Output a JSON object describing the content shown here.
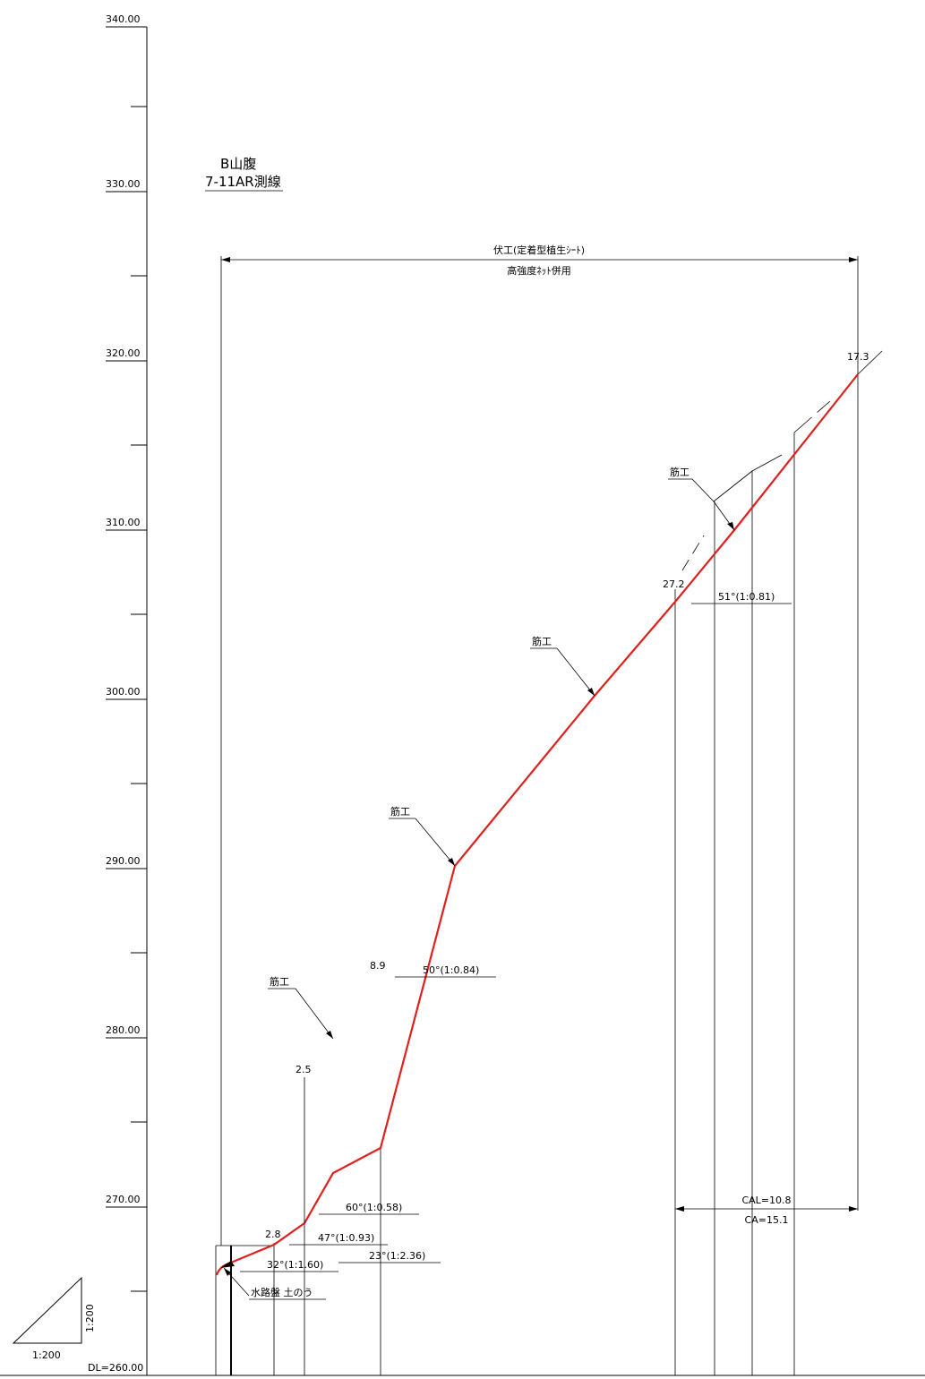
{
  "title": {
    "line1": "B山腹",
    "line2": "7-11AR測線"
  },
  "elevation_axis": {
    "datum_label": "DL=260.00",
    "major_ticks": [
      "340.00",
      "330.00",
      "320.00",
      "310.00",
      "300.00",
      "290.00",
      "280.00",
      "270.00"
    ]
  },
  "works": {
    "cover_top": "伏工(定着型植生ｼｰﾄ)",
    "cover_bottom": "高強度ﾈｯﾄ併用",
    "terrace_labels": [
      "筋工",
      "筋工",
      "筋工",
      "筋工"
    ],
    "drain_label": "水路盤 土のう"
  },
  "slopes": [
    {
      "label": "32°(1:1.60)"
    },
    {
      "label": "23°(1:2.36)"
    },
    {
      "label": "47°(1:0.93)"
    },
    {
      "label": "60°(1:0.58)"
    },
    {
      "label": "50°(1:0.84)"
    },
    {
      "label": "51°(1:0.81)"
    }
  ],
  "distances": [
    "2.8",
    "2.5",
    "8.9",
    "27.2",
    "17.3"
  ],
  "summary": {
    "cal": "CAL=10.8",
    "ca": "CA=15.1"
  },
  "scale": {
    "horizontal": "1:200",
    "vertical": "1:200"
  },
  "colors": {
    "profile": "#e0201c",
    "line": "#000000"
  }
}
